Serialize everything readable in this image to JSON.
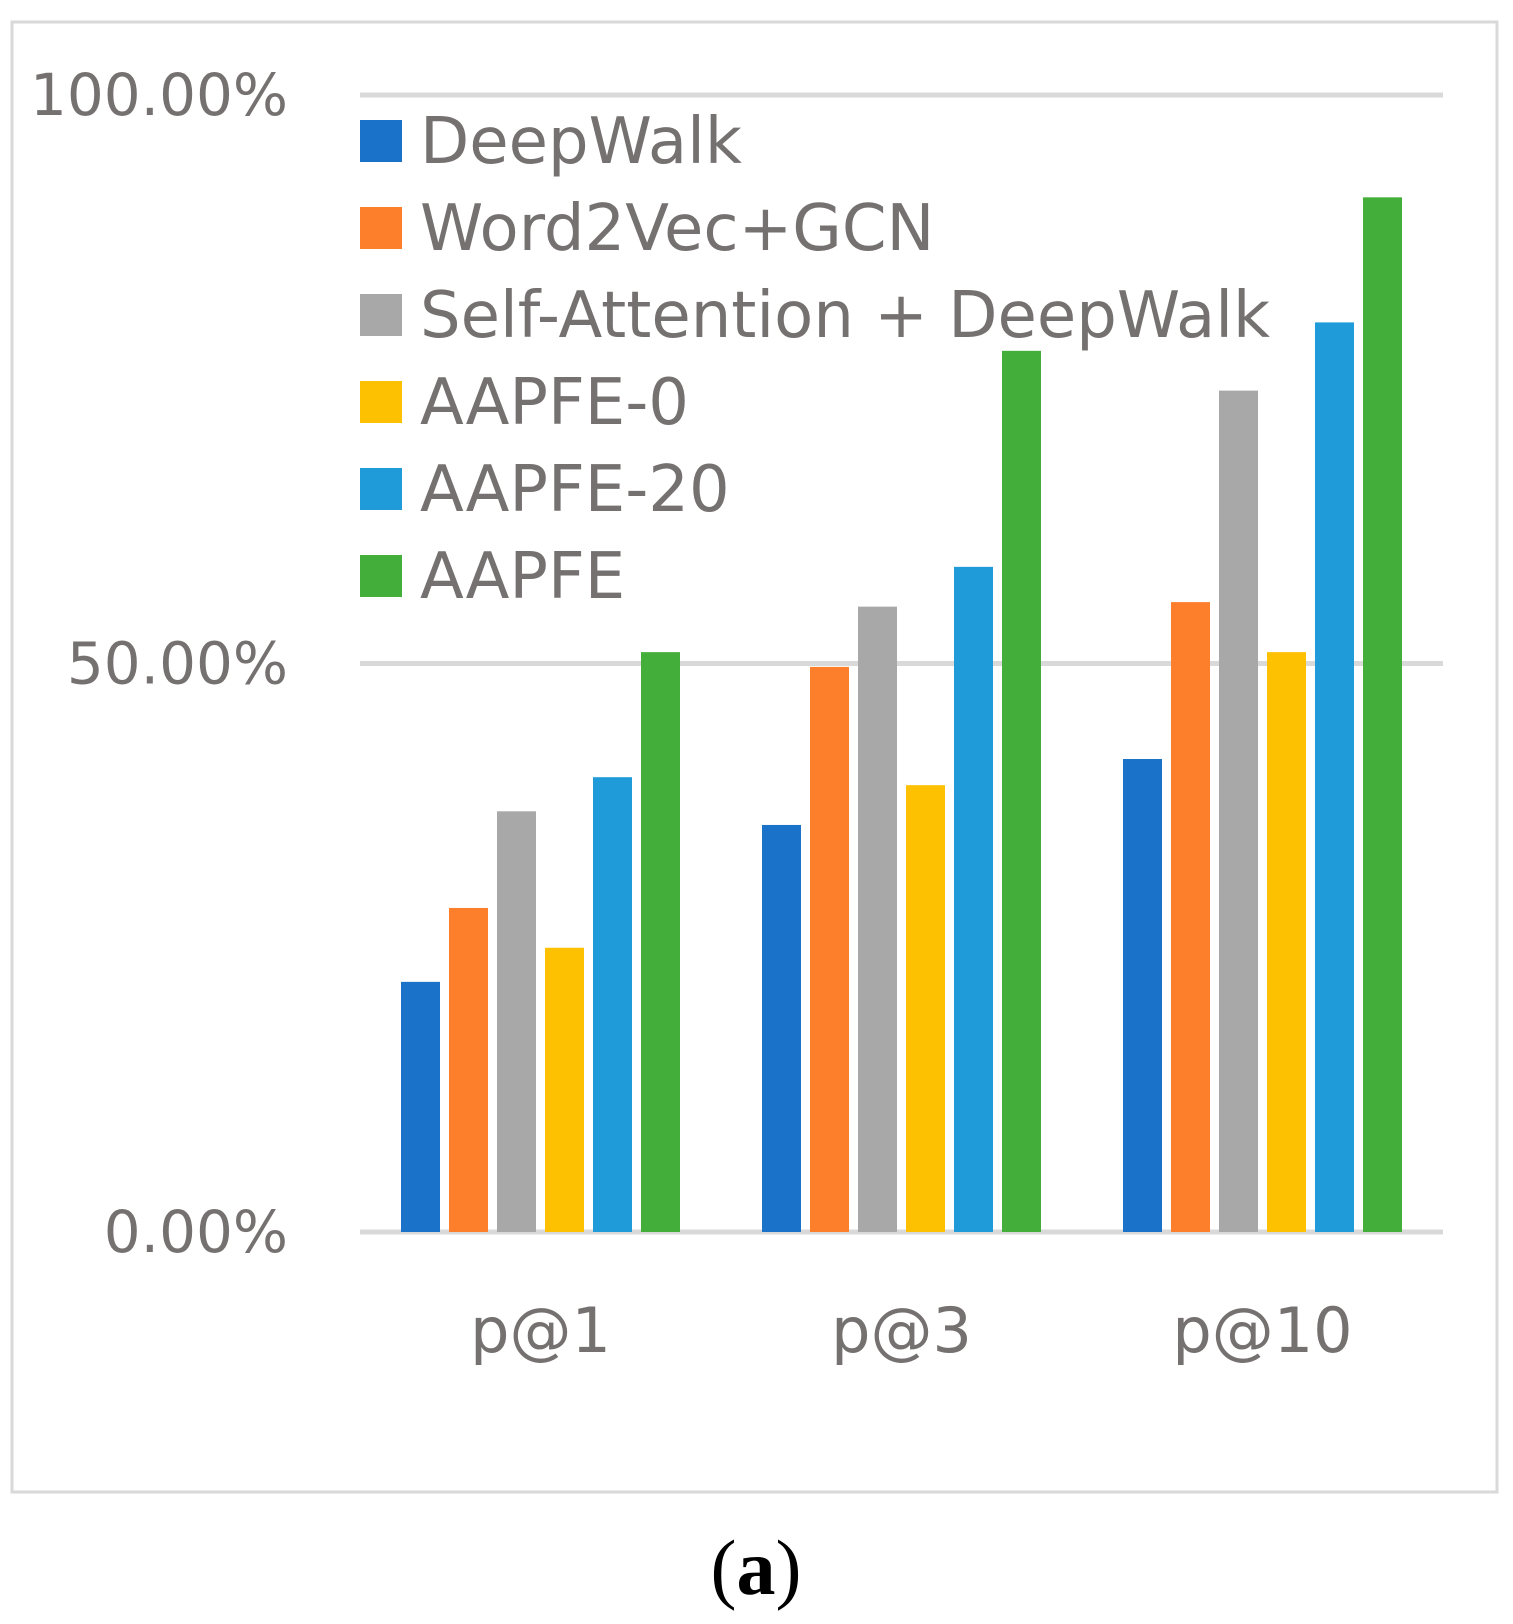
{
  "chart_data": {
    "type": "bar",
    "title": "",
    "xlabel": "",
    "ylabel": "",
    "ylim": [
      0,
      1
    ],
    "y_ticks": [
      {
        "value": 0,
        "label": "0.00%"
      },
      {
        "value": 0.5,
        "label": "50.00%"
      },
      {
        "value": 1,
        "label": "100.00%"
      }
    ],
    "grid": true,
    "legend_position": "top-left",
    "categories": [
      "p@1",
      "p@3",
      "p@10"
    ],
    "series": [
      {
        "name": "DeepWalk",
        "color": "#1a73c8",
        "values": [
          0.22,
          0.358,
          0.416
        ]
      },
      {
        "name": "Word2Vec+GCN",
        "color": "#fd7f2c",
        "values": [
          0.285,
          0.497,
          0.554
        ]
      },
      {
        "name": "Self-Attention + DeepWalk",
        "color": "#a8a8a8",
        "values": [
          0.37,
          0.55,
          0.74
        ]
      },
      {
        "name": "AAPFE-0",
        "color": "#fdc102",
        "values": [
          0.25,
          0.393,
          0.51
        ]
      },
      {
        "name": "AAPFE-20",
        "color": "#1f9bd9",
        "values": [
          0.4,
          0.585,
          0.8
        ]
      },
      {
        "name": "AAPFE",
        "color": "#43af3a",
        "values": [
          0.51,
          0.775,
          0.91
        ]
      }
    ]
  },
  "caption": {
    "open": "(",
    "letter": "a",
    "close": ")"
  }
}
